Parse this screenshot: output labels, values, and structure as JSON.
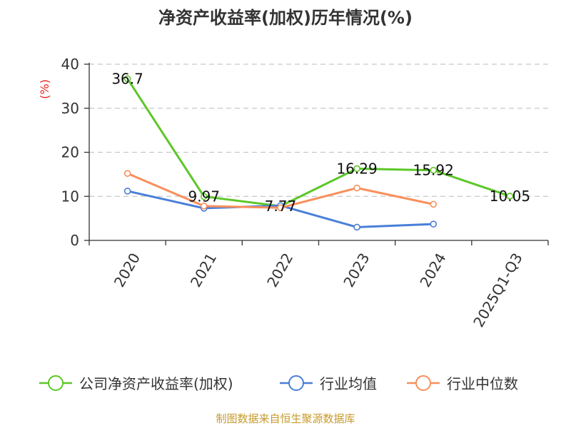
{
  "chart_data": {
    "type": "line",
    "title": "净资产收益率(加权)历年情况(%)",
    "ylabel": "(%)",
    "xlabel": "",
    "categories": [
      "2020",
      "2021",
      "2022",
      "2023",
      "2024",
      "2025Q1-Q3"
    ],
    "ylim": [
      0,
      40
    ],
    "yticks": [
      0,
      10,
      20,
      30,
      40
    ],
    "grid": true,
    "legend_position": "bottom",
    "series": [
      {
        "name": "公司净资产收益率(加权)",
        "color": "#5cc728",
        "values": [
          36.7,
          9.97,
          7.77,
          16.29,
          15.92,
          10.05
        ],
        "labels": [
          "36.7",
          "9.97",
          "7.77",
          "16.29",
          "15.92",
          "10.05"
        ]
      },
      {
        "name": "行业均值",
        "color": "#4a7fd8",
        "values": [
          11.2,
          7.3,
          7.9,
          3.0,
          3.7,
          null
        ]
      },
      {
        "name": "行业中位数",
        "color": "#f98f5b",
        "values": [
          15.2,
          7.8,
          7.4,
          11.9,
          8.2,
          null
        ]
      }
    ]
  },
  "source": "制图数据来自恒生聚源数据库"
}
